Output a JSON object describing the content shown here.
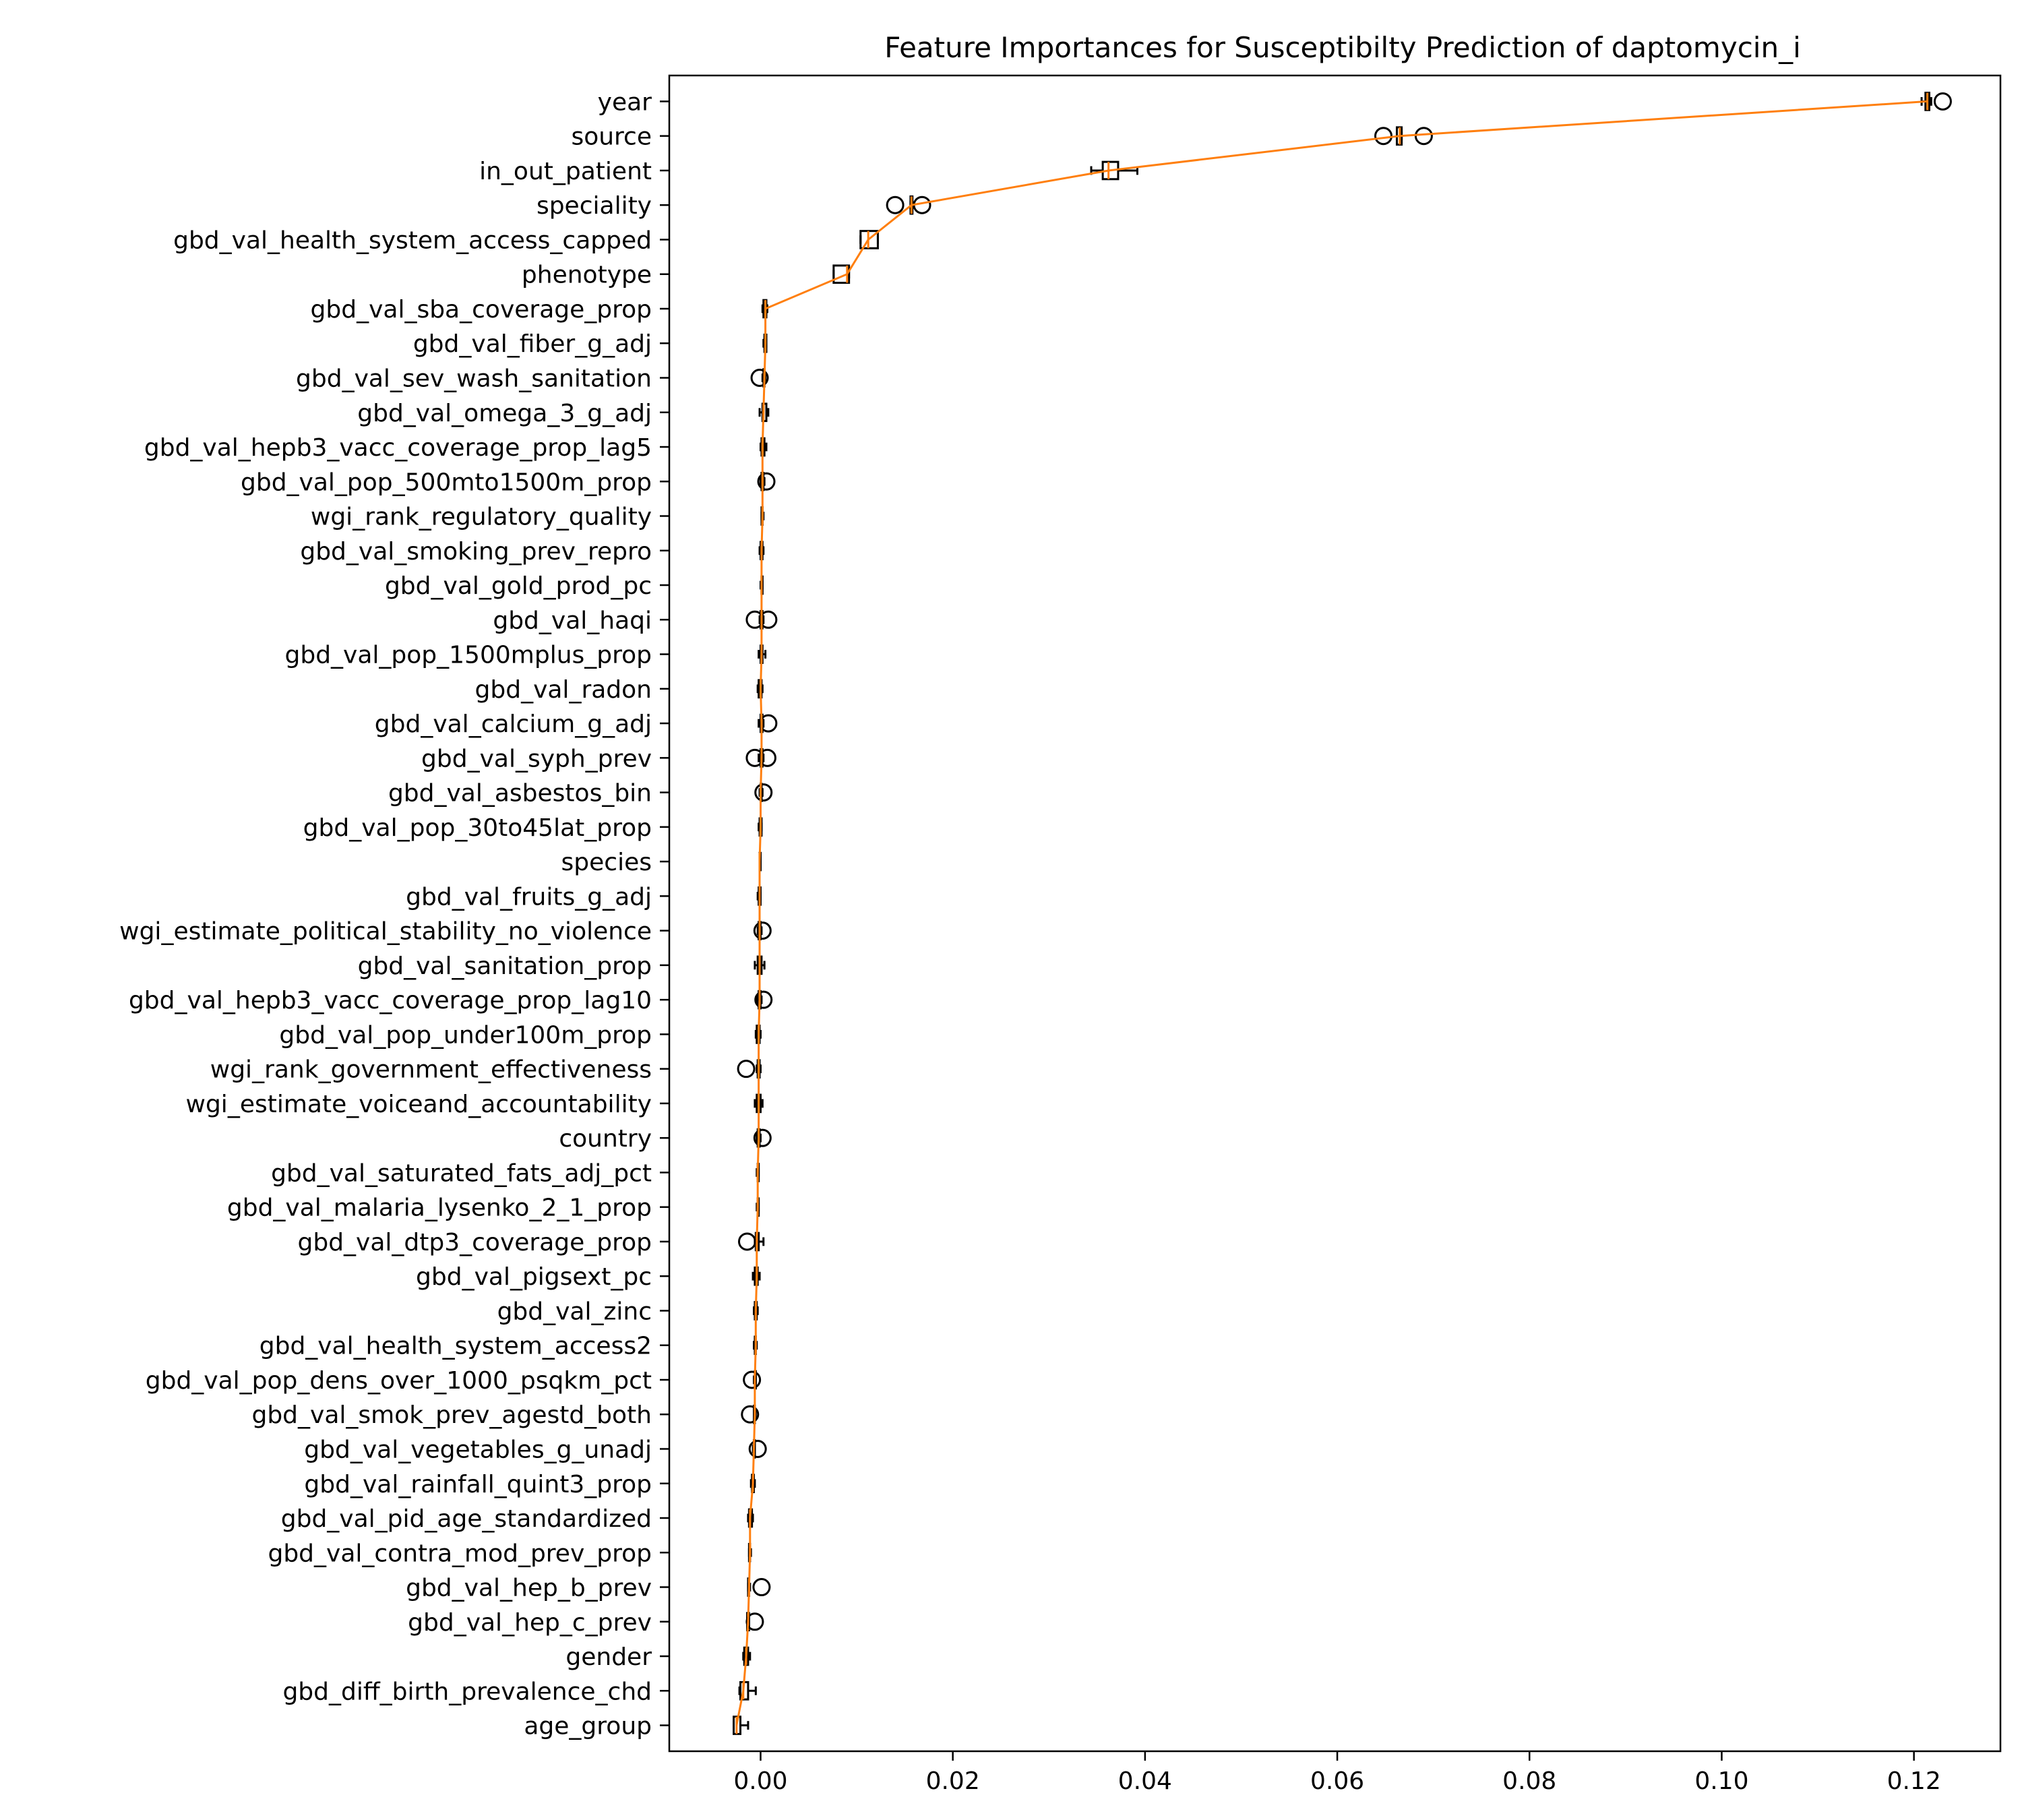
{
  "chart_data": {
    "type": "boxplot",
    "orientation": "horizontal",
    "title": "Feature Importances for Susceptibilty Prediction of daptomycin_i",
    "xlabel": "",
    "ylabel": "",
    "xlim": [
      -0.0095,
      0.129
    ],
    "xticks": [
      0.0,
      0.02,
      0.04,
      0.06,
      0.08,
      0.1,
      0.12
    ],
    "xtick_labels": [
      "0.00",
      "0.02",
      "0.04",
      "0.06",
      "0.08",
      "0.10",
      "0.12"
    ],
    "grid": false,
    "colors": {
      "box": "#000000",
      "median": "#ff7f0e",
      "trend_line": "#ff7f0e",
      "flier": "#000000"
    },
    "boxes": [
      {
        "label": "year",
        "wl": 0.1208,
        "q1": 0.1212,
        "med": 0.1214,
        "q3": 0.1216,
        "wh": 0.1218,
        "fliers": [
          0.123
        ]
      },
      {
        "label": "source",
        "wl": 0.0662,
        "q1": 0.0662,
        "med": 0.0665,
        "q3": 0.0667,
        "wh": 0.0667,
        "fliers": [
          0.0648,
          0.069
        ]
      },
      {
        "label": "in_out_patient",
        "wl": 0.0344,
        "q1": 0.0356,
        "med": 0.0362,
        "q3": 0.0372,
        "wh": 0.0392,
        "fliers": []
      },
      {
        "label": "speciality",
        "wl": 0.0156,
        "q1": 0.0156,
        "med": 0.0157,
        "q3": 0.0158,
        "wh": 0.0158,
        "fliers": [
          0.014,
          0.0168
        ]
      },
      {
        "label": "gbd_val_health_system_access_capped",
        "wl": 0.0104,
        "q1": 0.0104,
        "med": 0.0112,
        "q3": 0.0122,
        "wh": 0.0122,
        "fliers": []
      },
      {
        "label": "phenotype",
        "wl": 0.0076,
        "q1": 0.0076,
        "med": 0.009,
        "q3": 0.0092,
        "wh": 0.0092,
        "fliers": []
      },
      {
        "label": "gbd_val_sba_coverage_prop",
        "wl": 0.0002,
        "q1": 0.0003,
        "med": 0.0005,
        "q3": 0.0006,
        "wh": 0.0007,
        "fliers": []
      },
      {
        "label": "gbd_val_fiber_g_adj",
        "wl": 0.0003,
        "q1": 0.0004,
        "med": 0.0005,
        "q3": 0.0006,
        "wh": 0.0006,
        "fliers": []
      },
      {
        "label": "gbd_val_sev_wash_sanitation",
        "wl": 0.0002,
        "q1": 0.0003,
        "med": 0.0004,
        "q3": 0.0004,
        "wh": 0.0005,
        "fliers": [
          -0.0001
        ]
      },
      {
        "label": "gbd_val_omega_3_g_adj",
        "wl": -0.0001,
        "q1": 0.0002,
        "med": 0.0003,
        "q3": 0.0006,
        "wh": 0.0008,
        "fliers": []
      },
      {
        "label": "gbd_val_hepb3_vacc_coverage_prop_lag5",
        "wl": 0.0,
        "q1": 0.0001,
        "med": 0.0002,
        "q3": 0.0004,
        "wh": 0.0006,
        "fliers": []
      },
      {
        "label": "gbd_val_pop_500mto1500m_prop",
        "wl": 0.0,
        "q1": 0.0001,
        "med": 0.0002,
        "q3": 0.0003,
        "wh": 0.0004,
        "fliers": [
          0.0006
        ]
      },
      {
        "label": "wgi_rank_regulatory_quality",
        "wl": 0.0001,
        "q1": 0.0001,
        "med": 0.0002,
        "q3": 0.0002,
        "wh": 0.0003,
        "fliers": []
      },
      {
        "label": "gbd_val_smoking_prev_repro",
        "wl": -0.0001,
        "q1": 0.0,
        "med": 0.0001,
        "q3": 0.0002,
        "wh": 0.0003,
        "fliers": []
      },
      {
        "label": "gbd_val_gold_prod_pc",
        "wl": 0.0,
        "q1": 0.0001,
        "med": 0.0001,
        "q3": 0.0002,
        "wh": 0.0002,
        "fliers": []
      },
      {
        "label": "gbd_val_haqi",
        "wl": -0.0001,
        "q1": 0.0,
        "med": 0.0001,
        "q3": 0.0002,
        "wh": 0.0003,
        "fliers": [
          -0.0006,
          0.0008
        ]
      },
      {
        "label": "gbd_val_pop_1500mplus_prop",
        "wl": -0.0002,
        "q1": 0.0,
        "med": 0.0001,
        "q3": 0.0002,
        "wh": 0.0005,
        "fliers": []
      },
      {
        "label": "gbd_val_radon",
        "wl": -0.0003,
        "q1": -0.0002,
        "med": 0.0,
        "q3": 0.0001,
        "wh": 0.0002,
        "fliers": []
      },
      {
        "label": "gbd_val_calcium_g_adj",
        "wl": -0.0002,
        "q1": 0.0,
        "med": 0.0001,
        "q3": 0.0002,
        "wh": 0.0003,
        "fliers": [
          0.0008
        ]
      },
      {
        "label": "gbd_val_syph_prev",
        "wl": -0.0002,
        "q1": 0.0,
        "med": 0.0001,
        "q3": 0.0002,
        "wh": 0.0003,
        "fliers": [
          -0.0006,
          0.0007
        ]
      },
      {
        "label": "gbd_val_asbestos_bin",
        "wl": -0.0001,
        "q1": 0.0,
        "med": 0.0,
        "q3": 0.0001,
        "wh": 0.0002,
        "fliers": [
          0.0003
        ]
      },
      {
        "label": "gbd_val_pop_30to45lat_prop",
        "wl": -0.0002,
        "q1": -0.0001,
        "med": 0.0,
        "q3": 0.0001,
        "wh": 0.0001,
        "fliers": []
      },
      {
        "label": "species",
        "wl": -0.0001,
        "q1": -0.0001,
        "med": -0.0001,
        "q3": 0.0,
        "wh": 0.0,
        "fliers": []
      },
      {
        "label": "gbd_val_fruits_g_adj",
        "wl": -0.0003,
        "q1": -0.0002,
        "med": -0.0001,
        "q3": 0.0,
        "wh": 0.0,
        "fliers": []
      },
      {
        "label": "wgi_estimate_political_stability_no_violence",
        "wl": -0.0003,
        "q1": -0.0002,
        "med": -0.0001,
        "q3": 0.0,
        "wh": 0.0001,
        "fliers": [
          0.0002
        ]
      },
      {
        "label": "gbd_val_sanitation_prop",
        "wl": -0.0006,
        "q1": -0.0003,
        "med": -0.0001,
        "q3": 0.0001,
        "wh": 0.0004,
        "fliers": []
      },
      {
        "label": "gbd_val_hepb3_vacc_coverage_prop_lag10",
        "wl": -0.0004,
        "q1": -0.0002,
        "med": -0.0001,
        "q3": 0.0,
        "wh": 0.0001,
        "fliers": [
          0.0003
        ]
      },
      {
        "label": "gbd_val_pop_under100m_prop",
        "wl": -0.0005,
        "q1": -0.0004,
        "med": -0.0002,
        "q3": -0.0001,
        "wh": 0.0,
        "fliers": []
      },
      {
        "label": "wgi_rank_government_effectiveness",
        "wl": -0.0004,
        "q1": -0.0003,
        "med": -0.0002,
        "q3": -0.0001,
        "wh": 0.0,
        "fliers": [
          -0.0015
        ]
      },
      {
        "label": "wgi_estimate_voiceand_accountability",
        "wl": -0.0006,
        "q1": -0.0004,
        "med": -0.0002,
        "q3": 0.0,
        "wh": 0.0002,
        "fliers": []
      },
      {
        "label": "country",
        "wl": -0.0004,
        "q1": -0.0003,
        "med": -0.0002,
        "q3": -0.0001,
        "wh": 0.0,
        "fliers": [
          0.0002
        ]
      },
      {
        "label": "gbd_val_saturated_fats_adj_pct",
        "wl": -0.0004,
        "q1": -0.0003,
        "med": -0.0003,
        "q3": -0.0002,
        "wh": -0.0002,
        "fliers": []
      },
      {
        "label": "gbd_val_malaria_lysenko_2_1_prop",
        "wl": -0.0004,
        "q1": -0.0003,
        "med": -0.0003,
        "q3": -0.0003,
        "wh": -0.0002,
        "fliers": []
      },
      {
        "label": "gbd_val_dtp3_coverage_prop",
        "wl": -0.0006,
        "q1": -0.0005,
        "med": -0.0004,
        "q3": -0.0002,
        "wh": 0.0003,
        "fliers": [
          -0.0014
        ]
      },
      {
        "label": "gbd_val_pigsext_pc",
        "wl": -0.0008,
        "q1": -0.0006,
        "med": -0.0004,
        "q3": -0.0003,
        "wh": -0.0001,
        "fliers": []
      },
      {
        "label": "gbd_val_zinc",
        "wl": -0.0007,
        "q1": -0.0006,
        "med": -0.0005,
        "q3": -0.0004,
        "wh": -0.0003,
        "fliers": []
      },
      {
        "label": "gbd_val_health_system_access2",
        "wl": -0.0007,
        "q1": -0.0006,
        "med": -0.0005,
        "q3": -0.0005,
        "wh": -0.0004,
        "fliers": []
      },
      {
        "label": "gbd_val_pop_dens_over_1000_psqkm_pct",
        "wl": -0.0007,
        "q1": -0.0006,
        "med": -0.0006,
        "q3": -0.0005,
        "wh": -0.0005,
        "fliers": [
          -0.0009
        ]
      },
      {
        "label": "gbd_val_smok_prev_agestd_both",
        "wl": -0.0007,
        "q1": -0.0007,
        "med": -0.0006,
        "q3": -0.0006,
        "wh": -0.0005,
        "fliers": [
          -0.0011
        ]
      },
      {
        "label": "gbd_val_vegetables_g_unadj",
        "wl": -0.0008,
        "q1": -0.0007,
        "med": -0.0007,
        "q3": -0.0006,
        "wh": -0.0006,
        "fliers": [
          -0.0003
        ]
      },
      {
        "label": "gbd_val_rainfall_quint3_prop",
        "wl": -0.001,
        "q1": -0.0009,
        "med": -0.0008,
        "q3": -0.0007,
        "wh": -0.0006,
        "fliers": []
      },
      {
        "label": "gbd_val_pid_age_standardized",
        "wl": -0.0013,
        "q1": -0.0012,
        "med": -0.0011,
        "q3": -0.0009,
        "wh": -0.0008,
        "fliers": []
      },
      {
        "label": "gbd_val_contra_mod_prev_prop",
        "wl": -0.0012,
        "q1": -0.0012,
        "med": -0.0011,
        "q3": -0.0011,
        "wh": -0.001,
        "fliers": []
      },
      {
        "label": "gbd_val_hep_b_prev",
        "wl": -0.0013,
        "q1": -0.0013,
        "med": -0.0012,
        "q3": -0.0012,
        "wh": -0.0011,
        "fliers": [
          0.0001
        ]
      },
      {
        "label": "gbd_val_hep_c_prev",
        "wl": -0.0014,
        "q1": -0.0014,
        "med": -0.0013,
        "q3": -0.0012,
        "wh": -0.0012,
        "fliers": [
          -0.0006
        ]
      },
      {
        "label": "gender",
        "wl": -0.0018,
        "q1": -0.0017,
        "med": -0.0015,
        "q3": -0.0013,
        "wh": -0.0011,
        "fliers": []
      },
      {
        "label": "gbd_diff_birth_prevalence_chd",
        "wl": -0.0022,
        "q1": -0.0021,
        "med": -0.0018,
        "q3": -0.0013,
        "wh": -0.0005,
        "fliers": []
      },
      {
        "label": "age_group",
        "wl": -0.0028,
        "q1": -0.0028,
        "med": -0.0025,
        "q3": -0.0021,
        "wh": -0.0013,
        "fliers": []
      }
    ]
  }
}
